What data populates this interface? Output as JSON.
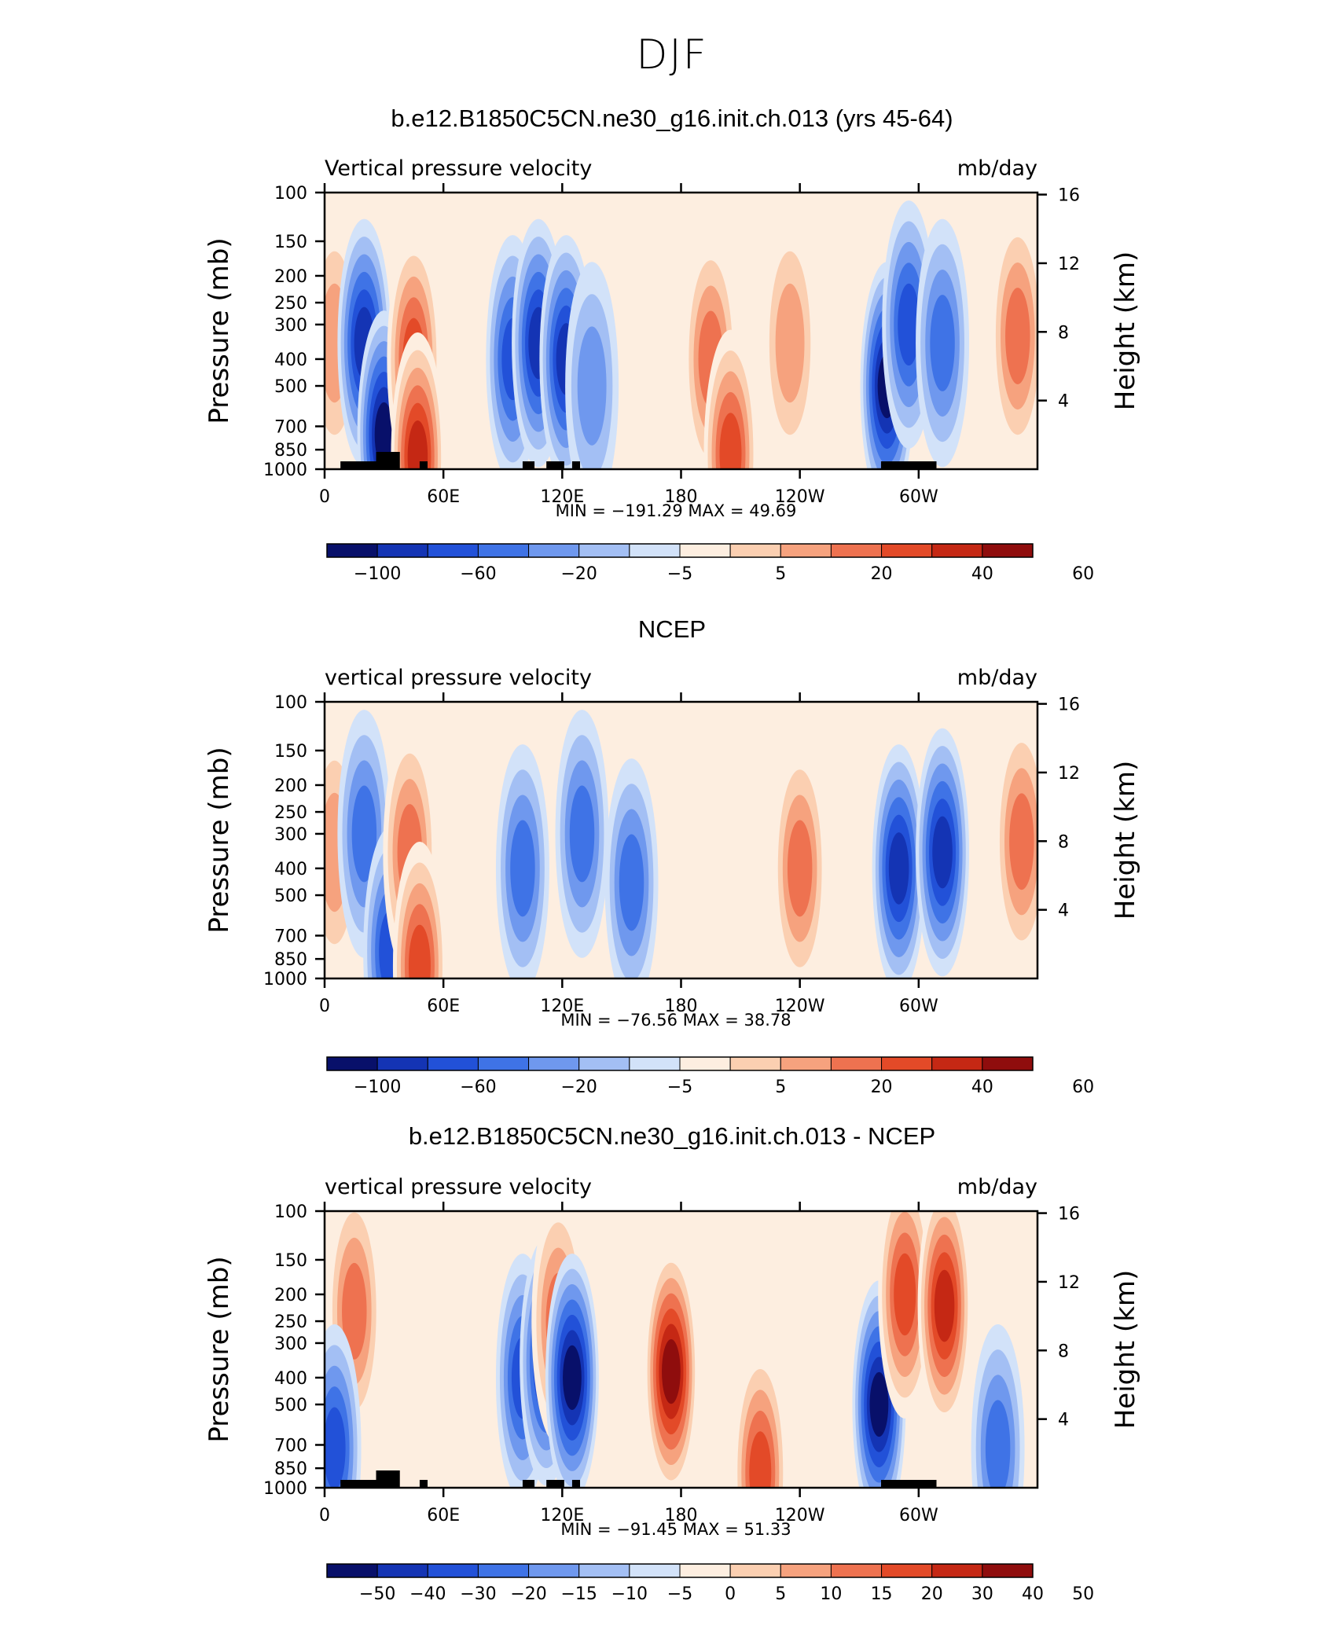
{
  "figure_title": "DJF",
  "chart_data": [
    {
      "type": "heatmap",
      "title": "b.e12.B1850C5CN.ne30_g16.init.ch.013 (yrs 45-64)",
      "variable_label": "Vertical pressure velocity",
      "units_label": "mb/day",
      "ylabel": "Pressure (mb)",
      "y2label": "Height (km)",
      "x_tick_labels": [
        "0",
        "60E",
        "120E",
        "180",
        "120W",
        "60W"
      ],
      "x_tick_lon": [
        0,
        60,
        120,
        180,
        240,
        300
      ],
      "xlim": [
        0,
        360
      ],
      "y_tick_labels": [
        "100",
        "150",
        "200",
        "250",
        "300",
        "400",
        "500",
        "700",
        "850",
        "1000"
      ],
      "y_tick_values": [
        100,
        150,
        200,
        250,
        300,
        400,
        500,
        700,
        850,
        1000
      ],
      "ylim": [
        1000,
        100
      ],
      "y_scale": "log",
      "y2_tick_labels": [
        "16",
        "12",
        "8",
        "4"
      ],
      "y2_tick_values": [
        16,
        12,
        8,
        4
      ],
      "stats": "MIN = −191.29   MAX =   49.69",
      "colorbar_levels": [
        "−100",
        "−60",
        "−20",
        "−5",
        "5",
        "20",
        "40",
        "60"
      ],
      "colorbar_colors": [
        "#08106a",
        "#1434b4",
        "#2251d8",
        "#3f73e6",
        "#6f98ee",
        "#a3bff4",
        "#d2e2f9",
        "#fdeee0",
        "#fbcfb1",
        "#f6a27e",
        "#ee7250",
        "#e34a28",
        "#c52814",
        "#8f0d0d"
      ],
      "features": [
        {
          "lon": 5,
          "plev": 350,
          "level": 9
        },
        {
          "lon": 20,
          "plev": 350,
          "level": 1
        },
        {
          "lon": 30,
          "plev": 750,
          "level": 0
        },
        {
          "lon": 45,
          "plev": 400,
          "level": 11
        },
        {
          "lon": 47,
          "plev": 900,
          "level": 12
        },
        {
          "lon": 95,
          "plev": 400,
          "level": 2
        },
        {
          "lon": 108,
          "plev": 350,
          "level": 1
        },
        {
          "lon": 122,
          "plev": 400,
          "level": 1
        },
        {
          "lon": 135,
          "plev": 500,
          "level": 4
        },
        {
          "lon": 195,
          "plev": 400,
          "level": 10
        },
        {
          "lon": 205,
          "plev": 880,
          "level": 11
        },
        {
          "lon": 235,
          "plev": 350,
          "level": 9
        },
        {
          "lon": 284,
          "plev": 500,
          "level": 0
        },
        {
          "lon": 295,
          "plev": 300,
          "level": 2
        },
        {
          "lon": 312,
          "plev": 350,
          "level": 3
        },
        {
          "lon": 350,
          "plev": 330,
          "level": 10
        }
      ]
    },
    {
      "type": "heatmap",
      "title": "NCEP",
      "variable_label": "vertical pressure velocity",
      "units_label": "mb/day",
      "ylabel": "Pressure (mb)",
      "y2label": "Height (km)",
      "x_tick_labels": [
        "0",
        "60E",
        "120E",
        "180",
        "120W",
        "60W"
      ],
      "x_tick_lon": [
        0,
        60,
        120,
        180,
        240,
        300
      ],
      "xlim": [
        0,
        360
      ],
      "y_tick_labels": [
        "100",
        "150",
        "200",
        "250",
        "300",
        "400",
        "500",
        "700",
        "850",
        "1000"
      ],
      "y_tick_values": [
        100,
        150,
        200,
        250,
        300,
        400,
        500,
        700,
        850,
        1000
      ],
      "ylim": [
        1000,
        100
      ],
      "y_scale": "log",
      "y2_tick_labels": [
        "16",
        "12",
        "8",
        "4"
      ],
      "y2_tick_values": [
        16,
        12,
        8,
        4
      ],
      "stats": "MIN = −76.56   MAX =   38.78",
      "colorbar_levels": [
        "−100",
        "−60",
        "−20",
        "−5",
        "5",
        "20",
        "40",
        "60"
      ],
      "colorbar_colors": [
        "#08106a",
        "#1434b4",
        "#2251d8",
        "#3f73e6",
        "#6f98ee",
        "#a3bff4",
        "#d2e2f9",
        "#fdeee0",
        "#fbcfb1",
        "#f6a27e",
        "#ee7250",
        "#e34a28",
        "#c52814",
        "#8f0d0d"
      ],
      "features": [
        {
          "lon": 5,
          "plev": 350,
          "level": 9
        },
        {
          "lon": 20,
          "plev": 300,
          "level": 3
        },
        {
          "lon": 33,
          "plev": 800,
          "level": 2
        },
        {
          "lon": 43,
          "plev": 350,
          "level": 10
        },
        {
          "lon": 48,
          "plev": 900,
          "level": 11
        },
        {
          "lon": 100,
          "plev": 400,
          "level": 3
        },
        {
          "lon": 130,
          "plev": 300,
          "level": 3
        },
        {
          "lon": 155,
          "plev": 450,
          "level": 3
        },
        {
          "lon": 240,
          "plev": 400,
          "level": 10
        },
        {
          "lon": 290,
          "plev": 400,
          "level": 1
        },
        {
          "lon": 312,
          "plev": 350,
          "level": 1
        },
        {
          "lon": 352,
          "plev": 320,
          "level": 10
        }
      ]
    },
    {
      "type": "heatmap",
      "title": "b.e12.B1850C5CN.ne30_g16.init.ch.013 - NCEP",
      "variable_label": "vertical pressure velocity",
      "units_label": "mb/day",
      "ylabel": "Pressure (mb)",
      "y2label": "Height (km)",
      "x_tick_labels": [
        "0",
        "60E",
        "120E",
        "180",
        "120W",
        "60W"
      ],
      "x_tick_lon": [
        0,
        60,
        120,
        180,
        240,
        300
      ],
      "xlim": [
        0,
        360
      ],
      "y_tick_labels": [
        "100",
        "150",
        "200",
        "250",
        "300",
        "400",
        "500",
        "700",
        "850",
        "1000"
      ],
      "y_tick_values": [
        100,
        150,
        200,
        250,
        300,
        400,
        500,
        700,
        850,
        1000
      ],
      "ylim": [
        1000,
        100
      ],
      "y_scale": "log",
      "y2_tick_labels": [
        "16",
        "12",
        "8",
        "4"
      ],
      "y2_tick_values": [
        16,
        12,
        8,
        4
      ],
      "stats": "MIN = −91.45   MAX =   51.33",
      "colorbar_levels": [
        "−50",
        "−40",
        "−30",
        "−20",
        "−15",
        "−10",
        "−5",
        "0",
        "5",
        "10",
        "15",
        "20",
        "30",
        "40",
        "50"
      ],
      "colorbar_colors": [
        "#08106a",
        "#1434b4",
        "#2251d8",
        "#3f73e6",
        "#6f98ee",
        "#a3bff4",
        "#d2e2f9",
        "#fdeee0",
        "#fbcfb1",
        "#f6a27e",
        "#ee7250",
        "#e34a28",
        "#c52814",
        "#8f0d0d"
      ],
      "features": [
        {
          "lon": 15,
          "plev": 230,
          "level": 10
        },
        {
          "lon": 5,
          "plev": 720,
          "level": 2
        },
        {
          "lon": 100,
          "plev": 400,
          "level": 2
        },
        {
          "lon": 112,
          "plev": 350,
          "level": 1
        },
        {
          "lon": 118,
          "plev": 250,
          "level": 10
        },
        {
          "lon": 125,
          "plev": 400,
          "level": 0
        },
        {
          "lon": 175,
          "plev": 380,
          "level": 13
        },
        {
          "lon": 220,
          "plev": 880,
          "level": 11
        },
        {
          "lon": 280,
          "plev": 500,
          "level": 0
        },
        {
          "lon": 293,
          "plev": 200,
          "level": 11
        },
        {
          "lon": 313,
          "plev": 220,
          "level": 12
        },
        {
          "lon": 340,
          "plev": 720,
          "level": 3
        }
      ]
    }
  ]
}
